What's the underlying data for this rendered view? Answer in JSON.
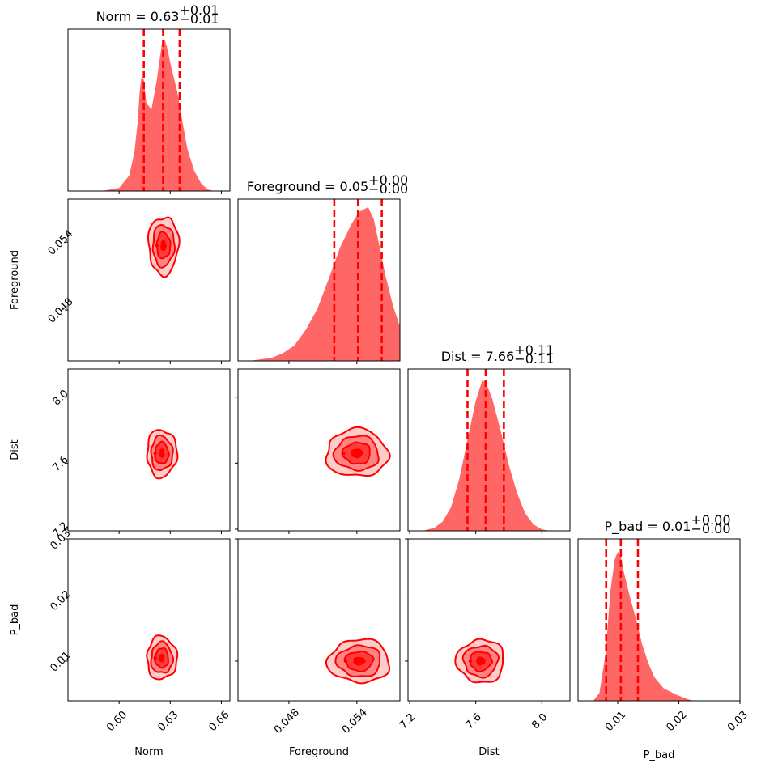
{
  "chart_data": {
    "type": "corner",
    "colors": {
      "main": "#ff0000",
      "histogram": "#ff6666"
    },
    "parameters": [
      {
        "name": "Norm",
        "label": "Norm",
        "title": {
          "prefix": "Norm = ",
          "median": "0.63",
          "plus": "+0.01",
          "minus": "−0.01"
        },
        "range": [
          0.57,
          0.665
        ],
        "ticks": [
          0.6,
          0.63,
          0.66
        ],
        "tick_labels": [
          "0.60",
          "0.63",
          "0.66"
        ],
        "quantiles": [
          0.6145,
          0.6258,
          0.6355
        ],
        "hist_x": [
          0.59,
          0.6,
          0.606,
          0.609,
          0.611,
          0.612,
          0.613,
          0.6145,
          0.616,
          0.619,
          0.622,
          0.625,
          0.6265,
          0.628,
          0.631,
          0.634,
          0.637,
          0.64,
          0.644,
          0.648,
          0.652,
          0.656
        ],
        "hist_y": [
          0.0,
          0.02,
          0.1,
          0.25,
          0.45,
          0.62,
          0.72,
          0.71,
          0.56,
          0.52,
          0.7,
          0.93,
          0.97,
          0.92,
          0.77,
          0.64,
          0.45,
          0.27,
          0.13,
          0.05,
          0.01,
          0.0
        ]
      },
      {
        "name": "Foreground",
        "label": "Foreground",
        "title": {
          "prefix": "Foreground = ",
          "median": "0.05",
          "plus": "+0.00",
          "minus": "−0.00"
        },
        "range": [
          0.0435,
          0.0578
        ],
        "ticks": [
          0.048,
          0.054
        ],
        "tick_labels": [
          "0.048",
          "0.054"
        ],
        "quantiles": [
          0.052,
          0.0541,
          0.0562
        ],
        "hist_x": [
          0.0445,
          0.0465,
          0.0475,
          0.0485,
          0.0495,
          0.0505,
          0.0515,
          0.0525,
          0.0535,
          0.0542,
          0.055,
          0.0555,
          0.056,
          0.0565,
          0.0572,
          0.0578
        ],
        "hist_y": [
          0.0,
          0.02,
          0.05,
          0.1,
          0.2,
          0.33,
          0.52,
          0.72,
          0.87,
          0.95,
          0.98,
          0.9,
          0.73,
          0.55,
          0.35,
          0.22
        ]
      },
      {
        "name": "Dist",
        "label": "Dist",
        "title": {
          "prefix": "Dist = ",
          "median": "7.66",
          "plus": "+0.11",
          "minus": "−0.11"
        },
        "range": [
          7.19,
          8.17
        ],
        "ticks": [
          7.2,
          7.6,
          8.0
        ],
        "tick_labels": [
          "7.2",
          "7.6",
          "8.0"
        ],
        "quantiles": [
          7.55,
          7.66,
          7.77
        ],
        "hist_x": [
          7.28,
          7.35,
          7.4,
          7.45,
          7.5,
          7.55,
          7.6,
          7.64,
          7.66,
          7.7,
          7.75,
          7.8,
          7.85,
          7.9,
          7.95,
          8.0,
          8.05
        ],
        "hist_y": [
          0.0,
          0.02,
          0.06,
          0.15,
          0.33,
          0.58,
          0.83,
          0.96,
          0.95,
          0.84,
          0.64,
          0.42,
          0.24,
          0.11,
          0.04,
          0.01,
          0.0
        ]
      },
      {
        "name": "P_bad",
        "label": "P_bad",
        "title": {
          "prefix": "P_bad = ",
          "median": "0.01",
          "plus": "+0.00",
          "minus": "−0.00"
        },
        "range": [
          0.0035,
          0.03
        ],
        "ticks": [
          0.01,
          0.02,
          0.03
        ],
        "tick_labels": [
          "0.01",
          "0.02",
          "0.03"
        ],
        "quantiles": [
          0.0081,
          0.0105,
          0.0133
        ],
        "hist_x": [
          0.006,
          0.007,
          0.008,
          0.0088,
          0.0095,
          0.01,
          0.0105,
          0.011,
          0.012,
          0.013,
          0.014,
          0.015,
          0.016,
          0.0175,
          0.0195,
          0.0215,
          0.0225
        ],
        "hist_y": [
          0.0,
          0.05,
          0.3,
          0.7,
          0.9,
          0.95,
          0.92,
          0.82,
          0.66,
          0.52,
          0.36,
          0.24,
          0.15,
          0.08,
          0.04,
          0.01,
          0.0
        ]
      }
    ],
    "density_2d": [
      {
        "x": "Norm",
        "y": "Foreground",
        "center": [
          0.626,
          0.0537
        ],
        "spread": [
          0.0055,
          0.0016
        ],
        "levels": [
          [
            0.2,
            0.3
          ],
          [
            0.55,
            0.65
          ],
          [
            1.0,
            1.1
          ],
          [
            1.45,
            1.5
          ]
        ]
      },
      {
        "x": "Norm",
        "y": "Dist",
        "center": [
          0.625,
          7.66
        ],
        "spread": [
          0.0055,
          0.09
        ],
        "levels": [
          [
            0.2,
            0.3
          ],
          [
            0.55,
            0.65
          ],
          [
            1.0,
            1.1
          ],
          [
            1.45,
            1.5
          ]
        ]
      },
      {
        "x": "Norm",
        "y": "P_bad",
        "center": [
          0.625,
          0.0105
        ],
        "spread": [
          0.0055,
          0.0022
        ],
        "levels": [
          [
            0.2,
            0.3
          ],
          [
            0.55,
            0.65
          ],
          [
            1.0,
            1.1
          ],
          [
            1.45,
            1.5
          ]
        ]
      },
      {
        "x": "Foreground",
        "y": "Dist",
        "center": [
          0.054,
          7.66
        ],
        "spread": [
          0.0017,
          0.09
        ],
        "levels": [
          [
            0.2,
            0.3
          ],
          [
            0.55,
            0.65
          ],
          [
            1.0,
            1.1
          ],
          [
            1.45,
            1.5
          ]
        ]
      },
      {
        "x": "Foreground",
        "y": "P_bad",
        "center": [
          0.0542,
          0.01
        ],
        "spread": [
          0.0017,
          0.0022
        ],
        "levels": [
          [
            0.2,
            0.3
          ],
          [
            0.55,
            0.65
          ],
          [
            1.0,
            1.1
          ],
          [
            1.45,
            1.5
          ]
        ]
      },
      {
        "x": "Dist",
        "y": "P_bad",
        "center": [
          7.63,
          0.01
        ],
        "spread": [
          0.09,
          0.0022
        ],
        "levels": [
          [
            0.2,
            0.3
          ],
          [
            0.55,
            0.65
          ],
          [
            1.0,
            1.1
          ],
          [
            1.45,
            1.5
          ]
        ]
      }
    ],
    "grid": false
  }
}
